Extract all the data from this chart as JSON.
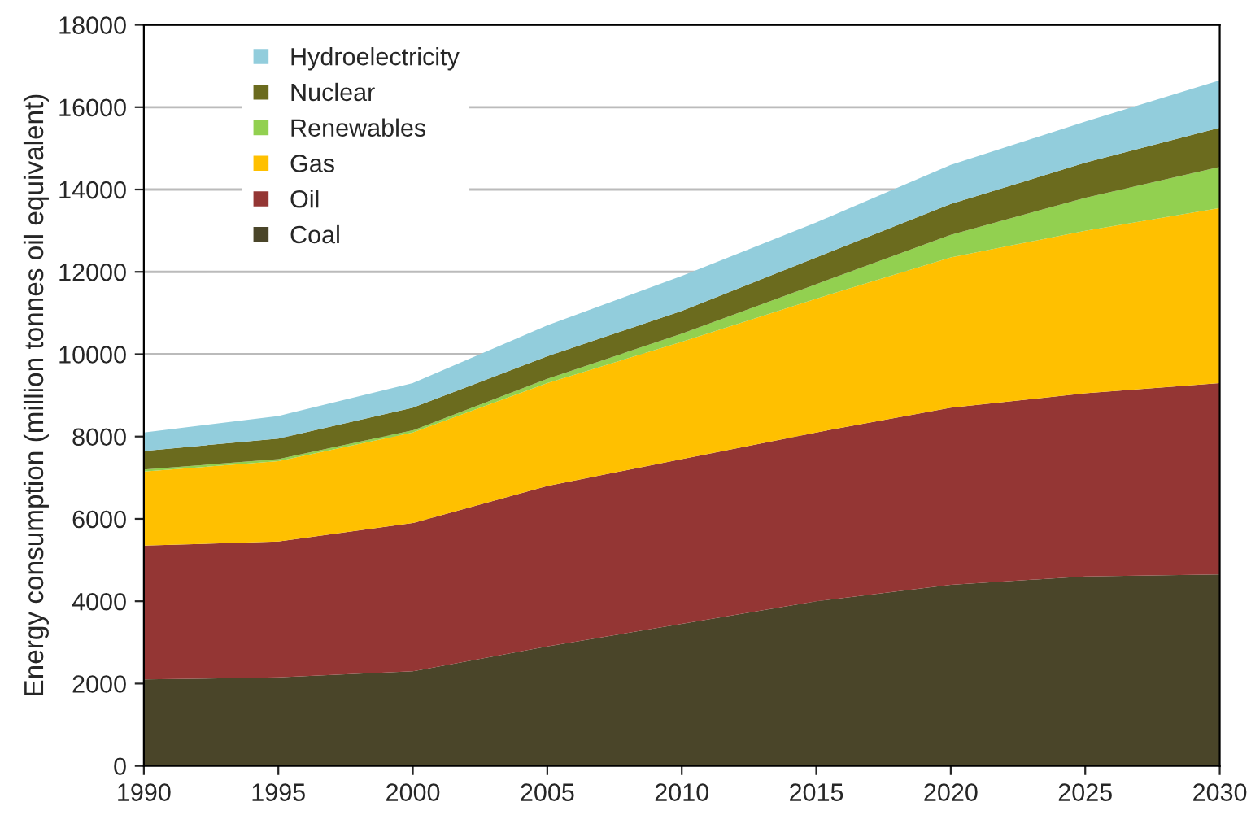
{
  "chart_data": {
    "type": "area",
    "stacked": true,
    "ylabel": "Energy consumption (million tonnes oil equivalent)",
    "x": [
      1990,
      1995,
      2000,
      2005,
      2010,
      2015,
      2020,
      2025,
      2030
    ],
    "series": [
      {
        "name": "Coal",
        "color": "#4a4529",
        "values": [
          2100,
          2150,
          2300,
          2900,
          3450,
          4000,
          4400,
          4600,
          4650
        ]
      },
      {
        "name": "Oil",
        "color": "#943634",
        "values": [
          3250,
          3300,
          3600,
          3900,
          4000,
          4100,
          4300,
          4450,
          4650
        ]
      },
      {
        "name": "Gas",
        "color": "#ffc000",
        "values": [
          1800,
          1950,
          2200,
          2500,
          2850,
          3250,
          3650,
          3950,
          4250
        ]
      },
      {
        "name": "Renewables",
        "color": "#92d050",
        "values": [
          50,
          50,
          50,
          100,
          200,
          350,
          550,
          800,
          1000
        ]
      },
      {
        "name": "Nuclear",
        "color": "#6b6b1e",
        "values": [
          450,
          500,
          550,
          550,
          550,
          650,
          750,
          850,
          950
        ]
      },
      {
        "name": "Hydroelectricity",
        "color": "#92cddc",
        "values": [
          450,
          550,
          600,
          750,
          850,
          850,
          950,
          1000,
          1150
        ]
      }
    ],
    "xlim": [
      1990,
      2030
    ],
    "xticks": [
      1990,
      1995,
      2000,
      2005,
      2010,
      2015,
      2020,
      2025,
      2030
    ],
    "ylim": [
      0,
      18000
    ],
    "yticks": [
      0,
      2000,
      4000,
      6000,
      8000,
      10000,
      12000,
      14000,
      16000,
      18000
    ],
    "grid": "y",
    "legend": "top left"
  }
}
